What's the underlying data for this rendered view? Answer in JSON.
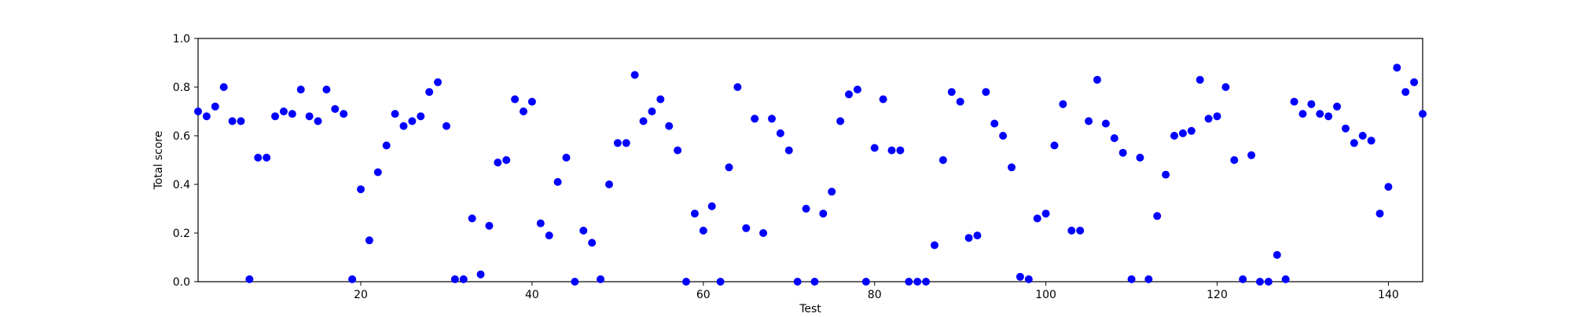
{
  "chart_data": {
    "type": "scatter",
    "title": "",
    "xlabel": "Test",
    "ylabel": "Total score",
    "xlim": [
      1,
      144
    ],
    "ylim": [
      0.0,
      1.0
    ],
    "x_ticks": [
      20,
      40,
      60,
      80,
      100,
      120,
      140
    ],
    "y_ticks": [
      0.0,
      0.2,
      0.4,
      0.6,
      0.8,
      1.0
    ],
    "y_tick_labels": [
      "0.0",
      "0.2",
      "0.4",
      "0.6",
      "0.8",
      "1.0"
    ],
    "grid": false,
    "marker_color": "#0000ff",
    "x": [
      1,
      2,
      3,
      4,
      5,
      6,
      7,
      8,
      9,
      10,
      11,
      12,
      13,
      14,
      15,
      16,
      17,
      18,
      19,
      20,
      21,
      22,
      23,
      24,
      25,
      26,
      27,
      28,
      29,
      30,
      31,
      32,
      33,
      34,
      35,
      36,
      37,
      38,
      39,
      40,
      41,
      42,
      43,
      44,
      45,
      46,
      47,
      48,
      49,
      50,
      51,
      52,
      53,
      54,
      55,
      56,
      57,
      58,
      59,
      60,
      61,
      62,
      63,
      64,
      65,
      66,
      67,
      68,
      69,
      70,
      71,
      72,
      73,
      74,
      75,
      76,
      77,
      78,
      79,
      80,
      81,
      82,
      83,
      84,
      85,
      86,
      87,
      88,
      89,
      90,
      91,
      92,
      93,
      94,
      95,
      96,
      97,
      98,
      99,
      100,
      101,
      102,
      103,
      104,
      105,
      106,
      107,
      108,
      109,
      110,
      111,
      112,
      113,
      114,
      115,
      116,
      117,
      118,
      119,
      120,
      121,
      122,
      123,
      124,
      125,
      126,
      127,
      128,
      129,
      130,
      131,
      132,
      133,
      134,
      135,
      136,
      137,
      138,
      139,
      140,
      141,
      142,
      143,
      144
    ],
    "y": [
      0.7,
      0.68,
      0.72,
      0.8,
      0.66,
      0.66,
      0.01,
      0.51,
      0.51,
      0.68,
      0.7,
      0.69,
      0.79,
      0.68,
      0.66,
      0.79,
      0.71,
      0.69,
      0.01,
      0.38,
      0.17,
      0.45,
      0.56,
      0.69,
      0.64,
      0.66,
      0.68,
      0.78,
      0.82,
      0.64,
      0.01,
      0.01,
      0.26,
      0.03,
      0.23,
      0.49,
      0.5,
      0.75,
      0.7,
      0.74,
      0.24,
      0.19,
      0.41,
      0.51,
      0.0,
      0.21,
      0.16,
      0.01,
      0.4,
      0.57,
      0.57,
      0.85,
      0.66,
      0.7,
      0.75,
      0.64,
      0.54,
      0.0,
      0.28,
      0.21,
      0.31,
      0.0,
      0.47,
      0.8,
      0.22,
      0.67,
      0.2,
      0.67,
      0.61,
      0.54,
      0.0,
      0.3,
      0.0,
      0.28,
      0.37,
      0.66,
      0.77,
      0.79,
      0.0,
      0.55,
      0.75,
      0.54,
      0.54,
      0.0,
      0.0,
      0.0,
      0.15,
      0.5,
      0.78,
      0.74,
      0.18,
      0.19,
      0.78,
      0.65,
      0.6,
      0.47,
      0.02,
      0.01,
      0.26,
      0.28,
      0.56,
      0.73,
      0.21,
      0.21,
      0.66,
      0.83,
      0.65,
      0.59,
      0.53,
      0.01,
      0.51,
      0.01,
      0.27,
      0.44,
      0.6,
      0.61,
      0.62,
      0.83,
      0.67,
      0.68,
      0.8,
      0.5,
      0.01,
      0.52,
      0.0,
      0.0,
      0.11,
      0.01,
      0.74,
      0.69,
      0.73,
      0.69,
      0.68,
      0.72,
      0.63,
      0.57,
      0.6,
      0.58,
      0.28,
      0.39,
      0.88,
      0.78,
      0.82,
      0.69
    ]
  }
}
